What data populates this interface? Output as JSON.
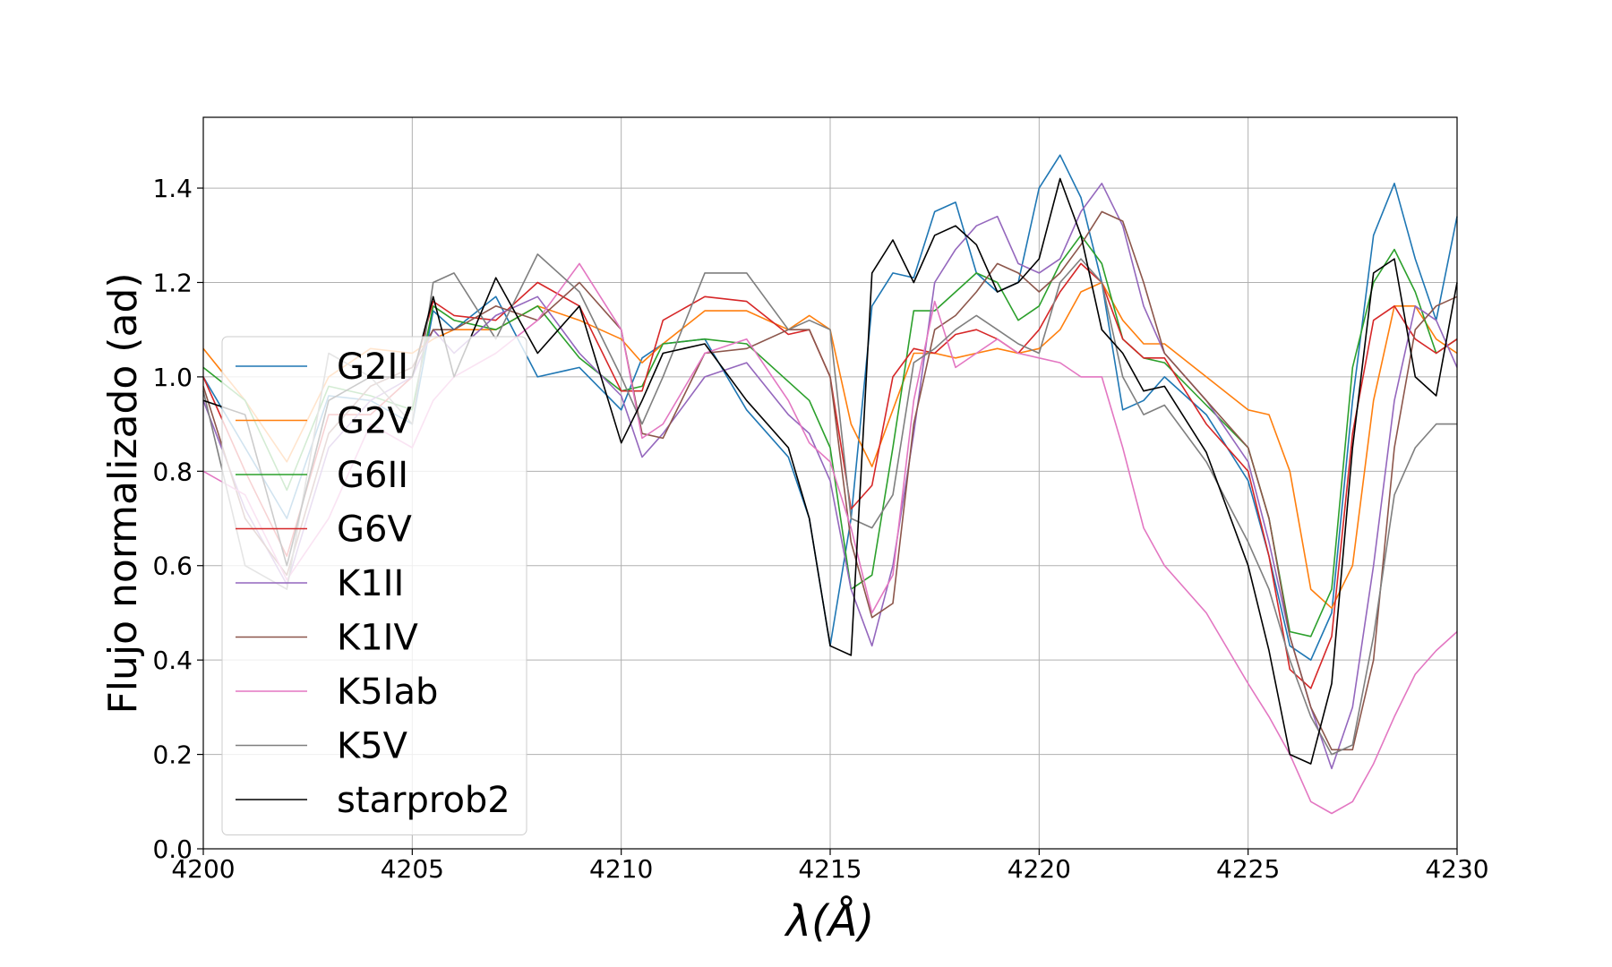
{
  "chart_data": {
    "type": "line",
    "xlabel": "λ(Å)",
    "ylabel": "Flujo normalizado (ad)",
    "xlim": [
      4200,
      4230
    ],
    "ylim": [
      0.0,
      1.55
    ],
    "xticks": [
      4200,
      4205,
      4210,
      4215,
      4220,
      4225,
      4230
    ],
    "xtick_labels": [
      "4200",
      "4205",
      "4210",
      "4215",
      "4220",
      "4225",
      "4230"
    ],
    "yticks": [
      0.0,
      0.2,
      0.4,
      0.6,
      0.8,
      1.0,
      1.2,
      1.4
    ],
    "ytick_labels": [
      "0.0",
      "0.2",
      "0.4",
      "0.6",
      "0.8",
      "1.0",
      "1.2",
      "1.4"
    ],
    "grid": true,
    "legend": "left",
    "x": [
      4200.0,
      4201.0,
      4202.0,
      4203.0,
      4204.0,
      4205.0,
      4205.5,
      4206.0,
      4207.0,
      4208.0,
      4209.0,
      4210.0,
      4210.5,
      4211.0,
      4212.0,
      4213.0,
      4214.0,
      4214.5,
      4215.0,
      4215.5,
      4216.0,
      4216.5,
      4217.0,
      4217.5,
      4218.0,
      4218.5,
      4219.0,
      4219.5,
      4220.0,
      4220.5,
      4221.0,
      4221.5,
      4222.0,
      4222.5,
      4223.0,
      4224.0,
      4225.0,
      4225.5,
      4226.0,
      4226.5,
      4227.0,
      4227.5,
      4228.0,
      4228.5,
      4229.0,
      4229.5,
      4230.0
    ],
    "series": [
      {
        "name": "G2II",
        "color": "#1f77b4",
        "values": [
          1.0,
          0.85,
          0.7,
          0.96,
          0.95,
          0.9,
          1.14,
          1.1,
          1.17,
          1.0,
          1.02,
          0.93,
          1.04,
          1.07,
          1.08,
          0.93,
          0.83,
          0.7,
          0.43,
          0.7,
          1.15,
          1.22,
          1.21,
          1.35,
          1.37,
          1.22,
          1.18,
          1.2,
          1.4,
          1.47,
          1.38,
          1.2,
          0.93,
          0.95,
          1.0,
          0.92,
          0.78,
          0.62,
          0.43,
          0.4,
          0.5,
          0.95,
          1.3,
          1.41,
          1.25,
          1.12,
          1.34
        ]
      },
      {
        "name": "G2V",
        "color": "#ff7f0e",
        "values": [
          1.06,
          0.95,
          0.82,
          1.0,
          1.06,
          1.05,
          1.08,
          1.1,
          1.1,
          1.15,
          1.12,
          1.08,
          1.03,
          1.07,
          1.14,
          1.14,
          1.1,
          1.13,
          1.1,
          0.9,
          0.81,
          0.93,
          1.05,
          1.05,
          1.04,
          1.05,
          1.06,
          1.05,
          1.06,
          1.1,
          1.18,
          1.2,
          1.12,
          1.07,
          1.07,
          1.0,
          0.93,
          0.92,
          0.8,
          0.55,
          0.51,
          0.6,
          0.95,
          1.15,
          1.15,
          1.08,
          1.05
        ]
      },
      {
        "name": "G6II",
        "color": "#2ca02c",
        "values": [
          1.02,
          0.95,
          0.76,
          0.98,
          0.96,
          0.93,
          1.15,
          1.12,
          1.1,
          1.15,
          1.04,
          0.97,
          0.98,
          1.07,
          1.08,
          1.07,
          0.99,
          0.95,
          0.85,
          0.55,
          0.58,
          0.85,
          1.14,
          1.14,
          1.18,
          1.22,
          1.2,
          1.12,
          1.15,
          1.24,
          1.3,
          1.24,
          1.08,
          1.04,
          1.03,
          0.94,
          0.85,
          0.7,
          0.46,
          0.45,
          0.55,
          1.02,
          1.2,
          1.27,
          1.18,
          1.05,
          1.08
        ]
      },
      {
        "name": "G6V",
        "color": "#d62728",
        "values": [
          1.0,
          0.8,
          0.62,
          0.92,
          0.92,
          1.0,
          1.16,
          1.13,
          1.12,
          1.2,
          1.15,
          0.97,
          0.97,
          1.12,
          1.17,
          1.16,
          1.09,
          1.1,
          1.0,
          0.72,
          0.77,
          1.0,
          1.06,
          1.05,
          1.09,
          1.1,
          1.08,
          1.05,
          1.1,
          1.18,
          1.24,
          1.2,
          1.08,
          1.04,
          1.04,
          0.9,
          0.8,
          0.62,
          0.38,
          0.34,
          0.45,
          0.88,
          1.12,
          1.15,
          1.08,
          1.05,
          1.08
        ]
      },
      {
        "name": "K1II",
        "color": "#9467bd",
        "values": [
          0.95,
          0.72,
          0.56,
          0.85,
          0.95,
          1.0,
          1.1,
          1.05,
          1.13,
          1.17,
          1.05,
          0.96,
          0.83,
          0.88,
          1.0,
          1.03,
          0.92,
          0.88,
          0.78,
          0.55,
          0.43,
          0.6,
          0.88,
          1.2,
          1.27,
          1.32,
          1.34,
          1.24,
          1.22,
          1.25,
          1.35,
          1.41,
          1.32,
          1.15,
          1.05,
          0.95,
          0.82,
          0.65,
          0.45,
          0.3,
          0.17,
          0.3,
          0.6,
          0.95,
          1.15,
          1.12,
          1.02
        ]
      },
      {
        "name": "K1IV",
        "color": "#8c564b",
        "values": [
          0.98,
          0.7,
          0.58,
          0.88,
          0.98,
          1.02,
          1.1,
          1.1,
          1.15,
          1.12,
          1.2,
          1.1,
          0.88,
          0.87,
          1.05,
          1.06,
          1.1,
          1.1,
          1.0,
          0.65,
          0.49,
          0.52,
          0.9,
          1.1,
          1.13,
          1.18,
          1.24,
          1.22,
          1.18,
          1.22,
          1.28,
          1.35,
          1.33,
          1.2,
          1.05,
          0.95,
          0.85,
          0.7,
          0.45,
          0.3,
          0.21,
          0.21,
          0.4,
          0.85,
          1.1,
          1.15,
          1.17
        ]
      },
      {
        "name": "K5Iab",
        "color": "#e377c2",
        "values": [
          0.8,
          0.75,
          0.57,
          0.7,
          0.9,
          0.85,
          0.95,
          1.0,
          1.05,
          1.12,
          1.24,
          1.1,
          0.87,
          0.9,
          1.05,
          1.08,
          0.95,
          0.86,
          0.82,
          0.68,
          0.5,
          0.58,
          0.95,
          1.16,
          1.02,
          1.05,
          1.08,
          1.05,
          1.04,
          1.03,
          1.0,
          1.0,
          0.85,
          0.68,
          0.6,
          0.5,
          0.35,
          0.28,
          0.2,
          0.1,
          0.075,
          0.1,
          0.18,
          0.28,
          0.37,
          0.42,
          0.46
        ]
      },
      {
        "name": "K5V",
        "color": "#7f7f7f",
        "values": [
          0.97,
          0.6,
          0.55,
          1.05,
          1.0,
          0.9,
          1.2,
          1.22,
          1.08,
          1.26,
          1.18,
          1.0,
          0.9,
          1.0,
          1.22,
          1.22,
          1.1,
          1.12,
          1.1,
          0.7,
          0.68,
          0.75,
          1.03,
          1.06,
          1.1,
          1.13,
          1.1,
          1.07,
          1.05,
          1.2,
          1.25,
          1.2,
          1.0,
          0.92,
          0.94,
          0.82,
          0.65,
          0.55,
          0.4,
          0.28,
          0.2,
          0.22,
          0.45,
          0.75,
          0.85,
          0.9,
          0.9
        ]
      },
      {
        "name": "starprob2",
        "color": "#000000",
        "values": [
          0.95,
          0.92,
          0.6,
          0.95,
          1.0,
          1.0,
          1.17,
          1.0,
          1.21,
          1.05,
          1.15,
          0.86,
          0.95,
          1.05,
          1.07,
          0.95,
          0.85,
          0.7,
          0.43,
          0.41,
          1.22,
          1.29,
          1.2,
          1.3,
          1.32,
          1.28,
          1.18,
          1.2,
          1.25,
          1.42,
          1.3,
          1.1,
          1.05,
          0.97,
          0.98,
          0.84,
          0.6,
          0.42,
          0.2,
          0.18,
          0.35,
          0.85,
          1.22,
          1.25,
          1.0,
          0.96,
          1.2
        ]
      }
    ]
  }
}
